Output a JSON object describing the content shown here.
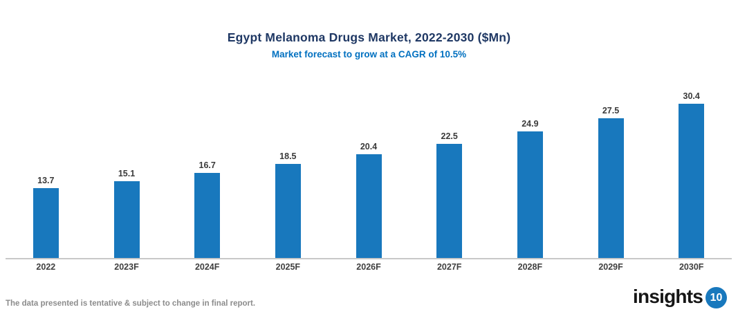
{
  "header": {
    "title": "Egypt Melanoma Drugs Market, 2022-2030 ($Mn)",
    "subtitle": "Market forecast to grow at a CAGR of 10.5%"
  },
  "chart_data": {
    "type": "bar",
    "categories": [
      "2022",
      "2023F",
      "2024F",
      "2025F",
      "2026F",
      "2027F",
      "2028F",
      "2029F",
      "2030F"
    ],
    "values": [
      13.7,
      15.1,
      16.7,
      18.5,
      20.4,
      22.5,
      24.9,
      27.5,
      30.4
    ],
    "title": "Egypt Melanoma Drugs Market, 2022-2030 ($Mn)",
    "subtitle": "Market forecast to grow at a CAGR of 10.5%",
    "xlabel": "",
    "ylabel": "",
    "ylim": [
      0,
      32
    ],
    "grid": false,
    "legend": "none",
    "data_labels": true,
    "bar_color": "#1878BD"
  },
  "footer": {
    "disclaimer": "The data presented is tentative & subject to change in final report.",
    "logo_text": "insights",
    "logo_badge": "10"
  },
  "colors": {
    "title": "#1F3864",
    "subtitle": "#0070C0",
    "bar": "#1878BD",
    "axis_line": "#C8C8C8",
    "data_label": "#3A3A3A",
    "x_label": "#3F3F3F",
    "disclaimer": "#8C8C8C",
    "logo_text": "#161616",
    "logo_badge_bg": "#1878BD",
    "logo_badge_text": "#FFFFFF"
  }
}
